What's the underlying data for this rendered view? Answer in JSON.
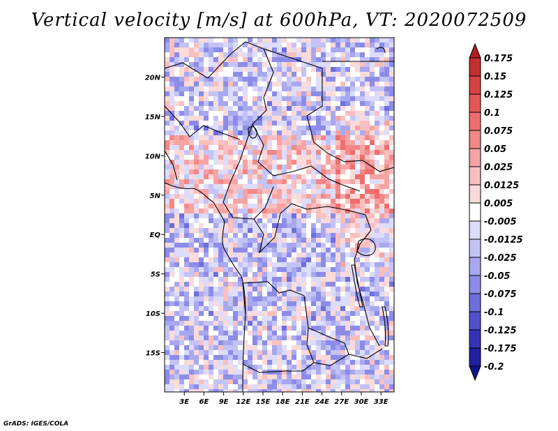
{
  "title": "Vertical velocity [m/s] at 600hPa, VT: 2020072509",
  "credit": "GrADS: IGES/COLA",
  "chart_data": {
    "type": "heatmap",
    "title": "Vertical velocity [m/s] at 600hPa, VT: 2020072509",
    "variable": "Vertical velocity",
    "units": "m/s",
    "level": "600hPa",
    "valid_time": "2020072509",
    "xlim": [
      0,
      35
    ],
    "ylim": [
      -20,
      25
    ],
    "xticks": [
      {
        "value": 3,
        "label": "3E"
      },
      {
        "value": 6,
        "label": "6E"
      },
      {
        "value": 9,
        "label": "9E"
      },
      {
        "value": 12,
        "label": "12E"
      },
      {
        "value": 15,
        "label": "15E"
      },
      {
        "value": 18,
        "label": "18E"
      },
      {
        "value": 21,
        "label": "21E"
      },
      {
        "value": 24,
        "label": "24E"
      },
      {
        "value": 27,
        "label": "27E"
      },
      {
        "value": 30,
        "label": "30E"
      },
      {
        "value": 33,
        "label": "33E"
      }
    ],
    "yticks": [
      {
        "value": 20,
        "label": "20N"
      },
      {
        "value": 15,
        "label": "15N"
      },
      {
        "value": 10,
        "label": "10N"
      },
      {
        "value": 5,
        "label": "5N"
      },
      {
        "value": 0,
        "label": "EQ"
      },
      {
        "value": -5,
        "label": "5S"
      },
      {
        "value": -10,
        "label": "10S"
      },
      {
        "value": -15,
        "label": "15S"
      }
    ],
    "colorbar": {
      "labels": [
        "0.175",
        "0.15",
        "0.125",
        "0.1",
        "0.075",
        "0.05",
        "0.025",
        "0.0125",
        "0.005",
        "-0.005",
        "-0.0125",
        "-0.025",
        "-0.05",
        "-0.075",
        "-0.1",
        "-0.125",
        "-0.175",
        "-0.2"
      ],
      "colors": [
        "#b01e1e",
        "#c52f2f",
        "#d94141",
        "#e65656",
        "#ee6e6e",
        "#f28888",
        "#f6a3a3",
        "#f9bfbf",
        "#fbdada",
        "#ffffff",
        "#dcdcfb",
        "#c3c3f6",
        "#a8a8f0",
        "#8c8ce8",
        "#6e6edc",
        "#5050cc",
        "#3333b8",
        "#2020a0",
        "#14148a"
      ],
      "extend": "both"
    }
  }
}
